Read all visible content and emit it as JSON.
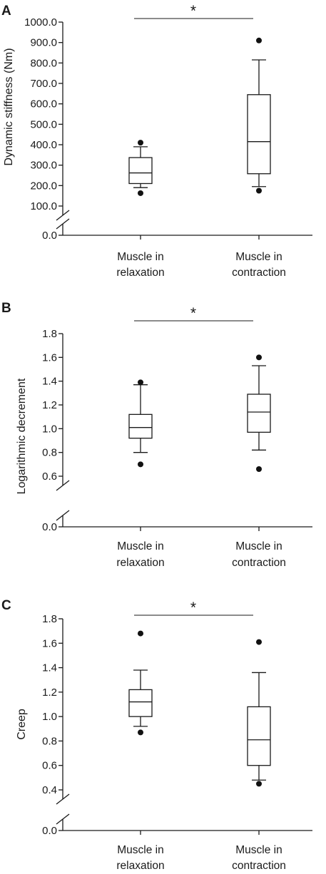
{
  "chart_data": [
    {
      "type": "box",
      "panel": "A",
      "ylabel": "Dynamic stiffness (Nm)",
      "yticks": [
        0.0,
        100.0,
        200.0,
        300.0,
        400.0,
        500.0,
        600.0,
        700.0,
        800.0,
        900.0,
        1000.0
      ],
      "ytick_labels": [
        "0.0",
        "100.0",
        "200.0",
        "300.0",
        "400.0",
        "500.0",
        "600.0",
        "700.0",
        "800.0",
        "900.0",
        "1000.0"
      ],
      "axis_break": [
        0.0,
        100.0
      ],
      "ylim": [
        0,
        1000
      ],
      "categories": [
        [
          "Muscle in",
          "relaxation"
        ],
        [
          "Muscle in",
          "contraction"
        ]
      ],
      "boxes": [
        {
          "whisker_low": 190,
          "q1": 210,
          "median": 262,
          "q3": 337,
          "whisker_high": 390,
          "outliers": [
            163,
            410
          ]
        },
        {
          "whisker_low": 195,
          "q1": 258,
          "median": 415,
          "q3": 645,
          "whisker_high": 815,
          "outliers": [
            175,
            910
          ]
        }
      ],
      "significance": {
        "label": "*",
        "between": [
          0,
          1
        ]
      }
    },
    {
      "type": "box",
      "panel": "B",
      "ylabel": "Logarithmic decrement",
      "yticks": [
        0.0,
        0.6,
        0.8,
        1.0,
        1.2,
        1.4,
        1.6,
        1.8
      ],
      "ytick_labels": [
        "0.0",
        "0.6",
        "0.8",
        "1.0",
        "1.2",
        "1.4",
        "1.6",
        "1.8"
      ],
      "axis_break": [
        0.0,
        0.6
      ],
      "ylim": [
        0,
        1.8
      ],
      "categories": [
        [
          "Muscle in",
          "relaxation"
        ],
        [
          "Muscle in",
          "contraction"
        ]
      ],
      "boxes": [
        {
          "whisker_low": 0.8,
          "q1": 0.92,
          "median": 1.01,
          "q3": 1.12,
          "whisker_high": 1.37,
          "outliers": [
            0.7,
            1.39
          ]
        },
        {
          "whisker_low": 0.82,
          "q1": 0.97,
          "median": 1.14,
          "q3": 1.29,
          "whisker_high": 1.53,
          "outliers": [
            0.66,
            1.6
          ]
        }
      ],
      "significance": {
        "label": "*",
        "between": [
          0,
          1
        ]
      }
    },
    {
      "type": "box",
      "panel": "C",
      "ylabel": "Creep",
      "yticks": [
        0.0,
        0.4,
        0.6,
        0.8,
        1.0,
        1.2,
        1.4,
        1.6,
        1.8
      ],
      "ytick_labels": [
        "0.0",
        "0.4",
        "0.6",
        "0.8",
        "1.0",
        "1.2",
        "1.4",
        "1.6",
        "1.8"
      ],
      "axis_break": [
        0.0,
        0.4
      ],
      "ylim": [
        0,
        1.8
      ],
      "categories": [
        [
          "Muscle in",
          "relaxation"
        ],
        [
          "Muscle in",
          "contraction"
        ]
      ],
      "boxes": [
        {
          "whisker_low": 0.92,
          "q1": 1.0,
          "median": 1.12,
          "q3": 1.22,
          "whisker_high": 1.38,
          "outliers": [
            0.87,
            1.68
          ]
        },
        {
          "whisker_low": 0.48,
          "q1": 0.6,
          "median": 0.81,
          "q3": 1.08,
          "whisker_high": 1.36,
          "outliers": [
            0.45,
            1.61
          ]
        }
      ],
      "significance": {
        "label": "*",
        "between": [
          0,
          1
        ]
      }
    }
  ]
}
